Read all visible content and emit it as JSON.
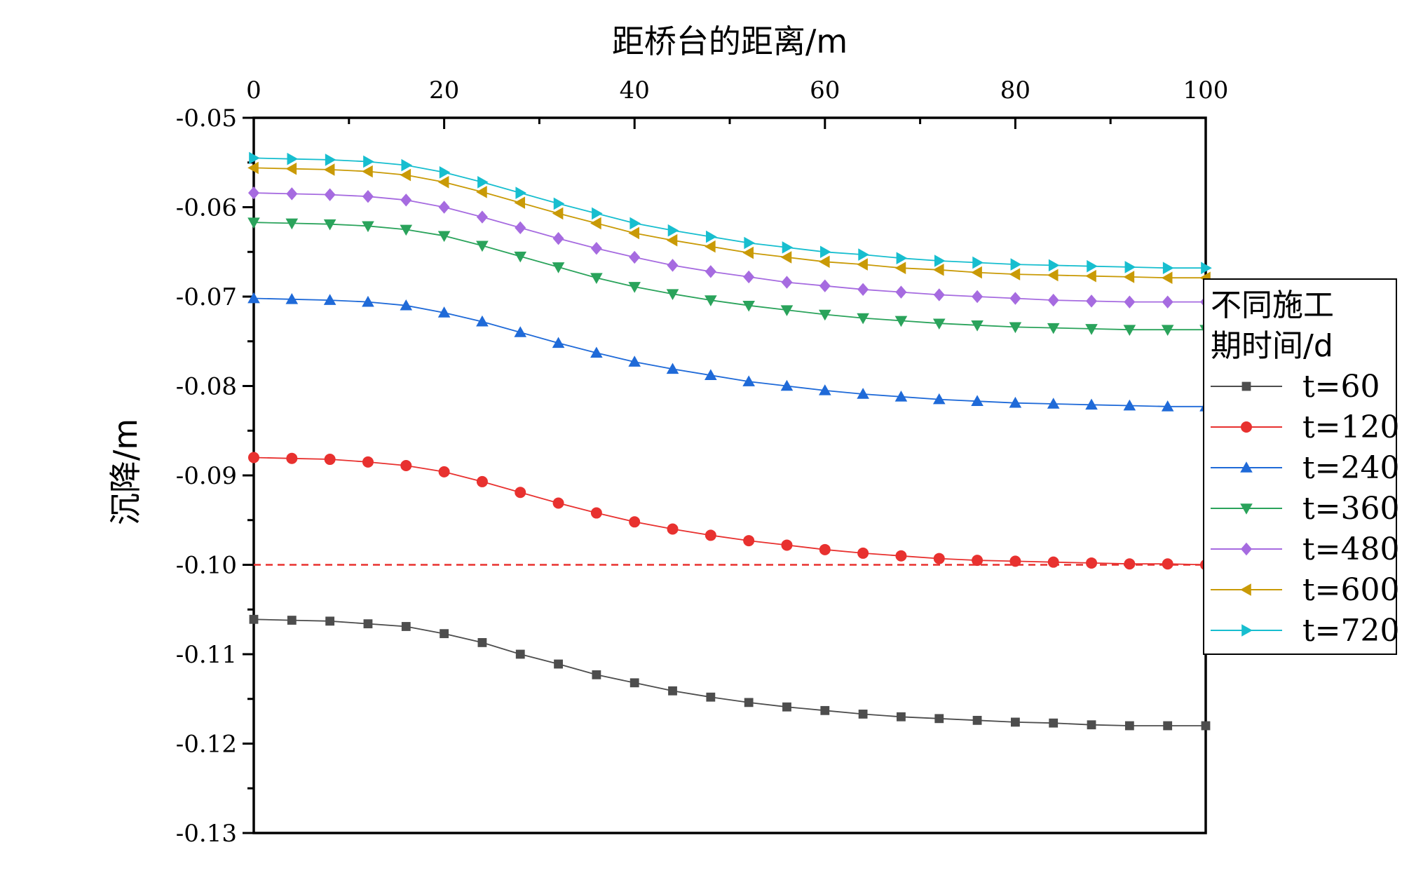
{
  "chart_data": {
    "type": "line",
    "xlabel": "距桥台的距离/m",
    "ylabel": "沉降/m",
    "xlim": [
      0,
      100
    ],
    "ylim": [
      -0.13,
      -0.05
    ],
    "x_ticks": [
      "0",
      "20",
      "40",
      "60",
      "80",
      "100"
    ],
    "x_tick_values": [
      0,
      20,
      40,
      60,
      80,
      100
    ],
    "y_ticks": [
      "-0.05",
      "-0.06",
      "-0.07",
      "-0.08",
      "-0.09",
      "-0.10",
      "-0.11",
      "-0.12",
      "-0.13"
    ],
    "y_tick_values": [
      -0.05,
      -0.06,
      -0.07,
      -0.08,
      -0.09,
      -0.1,
      -0.11,
      -0.12,
      -0.13
    ],
    "x_axis_position": "top",
    "grid": false,
    "legend_placement": "right",
    "legend_title_lines": [
      "不同施工",
      "期时间/d"
    ],
    "reference_line": {
      "y": -0.1,
      "color": "#e8312f",
      "style": "dashed"
    },
    "x": [
      0,
      4,
      8,
      12,
      16,
      20,
      24,
      28,
      32,
      36,
      40,
      44,
      48,
      52,
      56,
      60,
      64,
      68,
      72,
      76,
      80,
      84,
      88,
      92,
      96,
      100
    ],
    "series": [
      {
        "name": "t=60",
        "marker": "square",
        "color": "#4d4d4d",
        "values": [
          -0.1061,
          -0.1062,
          -0.1063,
          -0.1066,
          -0.1069,
          -0.1077,
          -0.1087,
          -0.11,
          -0.1111,
          -0.1123,
          -0.1132,
          -0.1141,
          -0.1148,
          -0.1154,
          -0.1159,
          -0.1163,
          -0.1167,
          -0.117,
          -0.1172,
          -0.1174,
          -0.1176,
          -0.1177,
          -0.1179,
          -0.118,
          -0.118,
          -0.118
        ]
      },
      {
        "name": "t=120",
        "marker": "circle",
        "color": "#e8312f",
        "values": [
          -0.088,
          -0.0881,
          -0.0882,
          -0.0885,
          -0.0889,
          -0.0896,
          -0.0907,
          -0.0919,
          -0.0931,
          -0.0942,
          -0.0952,
          -0.096,
          -0.0967,
          -0.0973,
          -0.0978,
          -0.0983,
          -0.0987,
          -0.099,
          -0.0993,
          -0.0995,
          -0.0996,
          -0.0997,
          -0.0998,
          -0.0999,
          -0.0999,
          -0.1
        ]
      },
      {
        "name": "t=240",
        "marker": "triangle-up",
        "color": "#1f6ad8",
        "values": [
          -0.0702,
          -0.0703,
          -0.0704,
          -0.0706,
          -0.071,
          -0.0718,
          -0.0728,
          -0.074,
          -0.0752,
          -0.0763,
          -0.0773,
          -0.0781,
          -0.0788,
          -0.0795,
          -0.08,
          -0.0805,
          -0.0809,
          -0.0812,
          -0.0815,
          -0.0817,
          -0.0819,
          -0.082,
          -0.0821,
          -0.0822,
          -0.0823,
          -0.0823
        ]
      },
      {
        "name": "t=360",
        "marker": "triangle-down",
        "color": "#2aa35b",
        "values": [
          -0.0617,
          -0.0618,
          -0.0619,
          -0.0621,
          -0.0625,
          -0.0632,
          -0.0643,
          -0.0655,
          -0.0667,
          -0.0679,
          -0.0689,
          -0.0697,
          -0.0704,
          -0.071,
          -0.0715,
          -0.072,
          -0.0724,
          -0.0727,
          -0.073,
          -0.0732,
          -0.0734,
          -0.0735,
          -0.0736,
          -0.0737,
          -0.0737,
          -0.0737
        ]
      },
      {
        "name": "t=480",
        "marker": "diamond",
        "color": "#a66be0",
        "values": [
          -0.0584,
          -0.0585,
          -0.0586,
          -0.0588,
          -0.0592,
          -0.06,
          -0.0611,
          -0.0623,
          -0.0635,
          -0.0646,
          -0.0656,
          -0.0665,
          -0.0672,
          -0.0678,
          -0.0684,
          -0.0688,
          -0.0692,
          -0.0695,
          -0.0698,
          -0.07,
          -0.0702,
          -0.0704,
          -0.0705,
          -0.0706,
          -0.0706,
          -0.0706
        ]
      },
      {
        "name": "t=600",
        "marker": "triangle-left",
        "color": "#c99a06",
        "values": [
          -0.0556,
          -0.0557,
          -0.0558,
          -0.056,
          -0.0564,
          -0.0572,
          -0.0583,
          -0.0595,
          -0.0607,
          -0.0618,
          -0.0629,
          -0.0637,
          -0.0644,
          -0.0651,
          -0.0656,
          -0.0661,
          -0.0664,
          -0.0668,
          -0.067,
          -0.0673,
          -0.0675,
          -0.0676,
          -0.0677,
          -0.0678,
          -0.0679,
          -0.0679
        ]
      },
      {
        "name": "t=720",
        "marker": "triangle-right",
        "color": "#17becf",
        "values": [
          -0.0545,
          -0.0546,
          -0.0547,
          -0.0549,
          -0.0553,
          -0.0561,
          -0.0572,
          -0.0584,
          -0.0596,
          -0.0607,
          -0.0618,
          -0.0626,
          -0.0633,
          -0.064,
          -0.0645,
          -0.065,
          -0.0653,
          -0.0657,
          -0.066,
          -0.0662,
          -0.0664,
          -0.0665,
          -0.0666,
          -0.0667,
          -0.0668,
          -0.0668
        ]
      }
    ]
  }
}
